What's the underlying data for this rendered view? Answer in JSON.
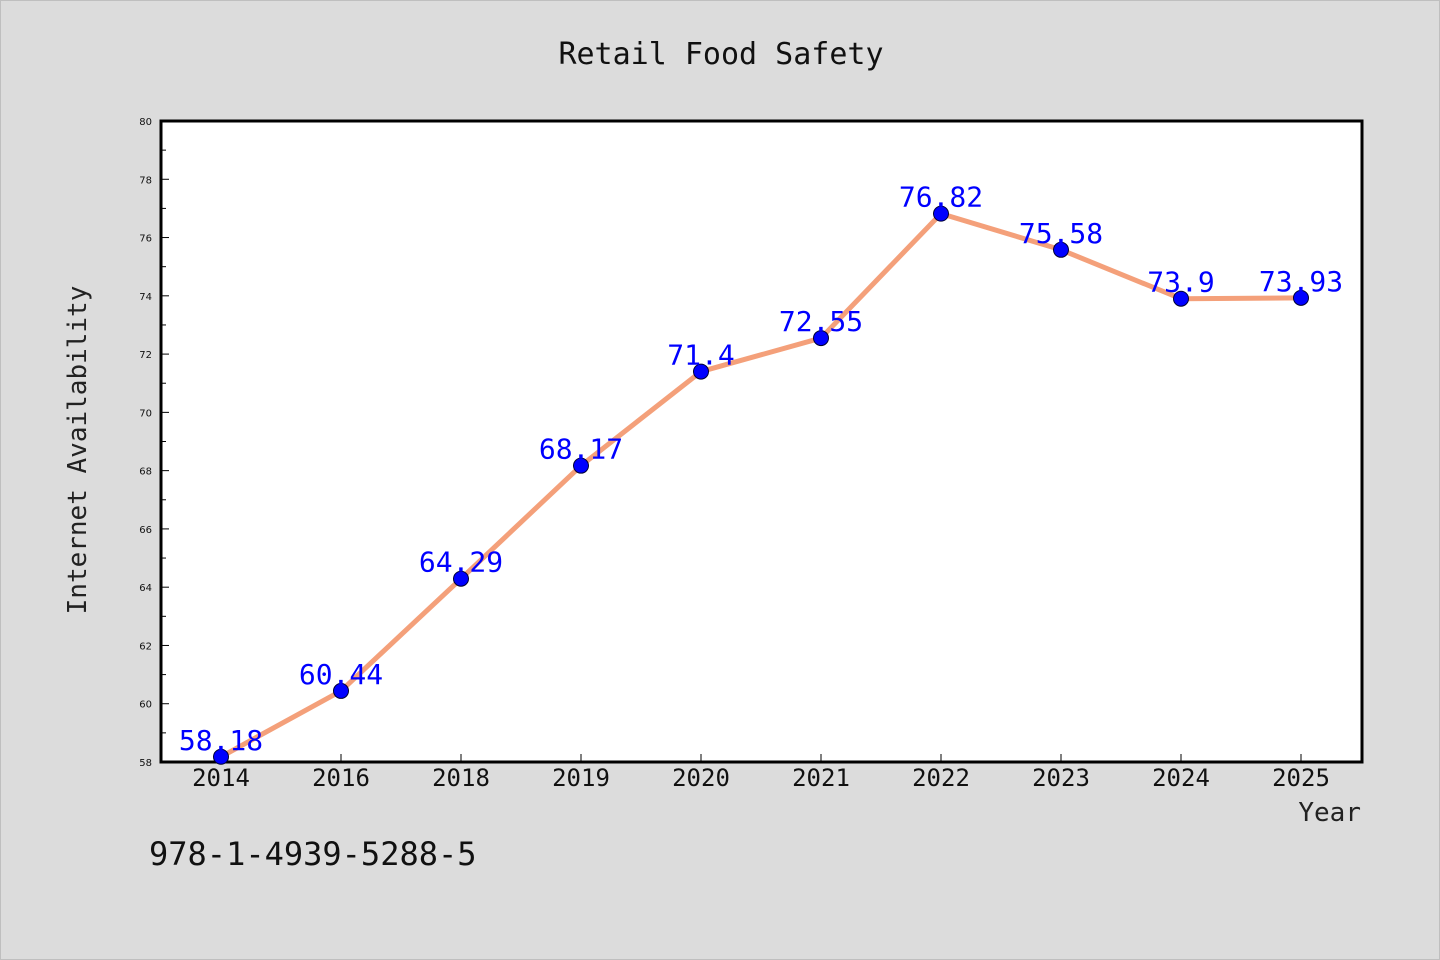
{
  "chart_data": {
    "type": "line",
    "title": "Retail Food Safety",
    "xlabel": "Year",
    "ylabel": "Internet Availability",
    "categories": [
      "2014",
      "2016",
      "2018",
      "2019",
      "2020",
      "2021",
      "2022",
      "2023",
      "2024",
      "2025"
    ],
    "series": [
      {
        "values": [
          58.18,
          60.44,
          64.29,
          68.17,
          71.4,
          72.55,
          76.82,
          75.58,
          73.9,
          73.93
        ],
        "data_labels": [
          "58.18",
          "60.44",
          "64.29",
          "68.17",
          "71.4",
          "72.55",
          "76.82",
          "75.58",
          "73.9",
          "73.93"
        ],
        "line_color": "#f4a07a",
        "marker_color": "#0000ff"
      }
    ],
    "ylim": [
      58,
      80
    ],
    "yticks": [
      58,
      60,
      62,
      64,
      66,
      68,
      70,
      72,
      74,
      76,
      78,
      80
    ],
    "grid": false,
    "legend": "none"
  },
  "footnote": "978-1-4939-5288-5",
  "colors": {
    "background": "#dcdcdc",
    "plot_area": "#ffffff",
    "data_label": "#0000ff"
  }
}
